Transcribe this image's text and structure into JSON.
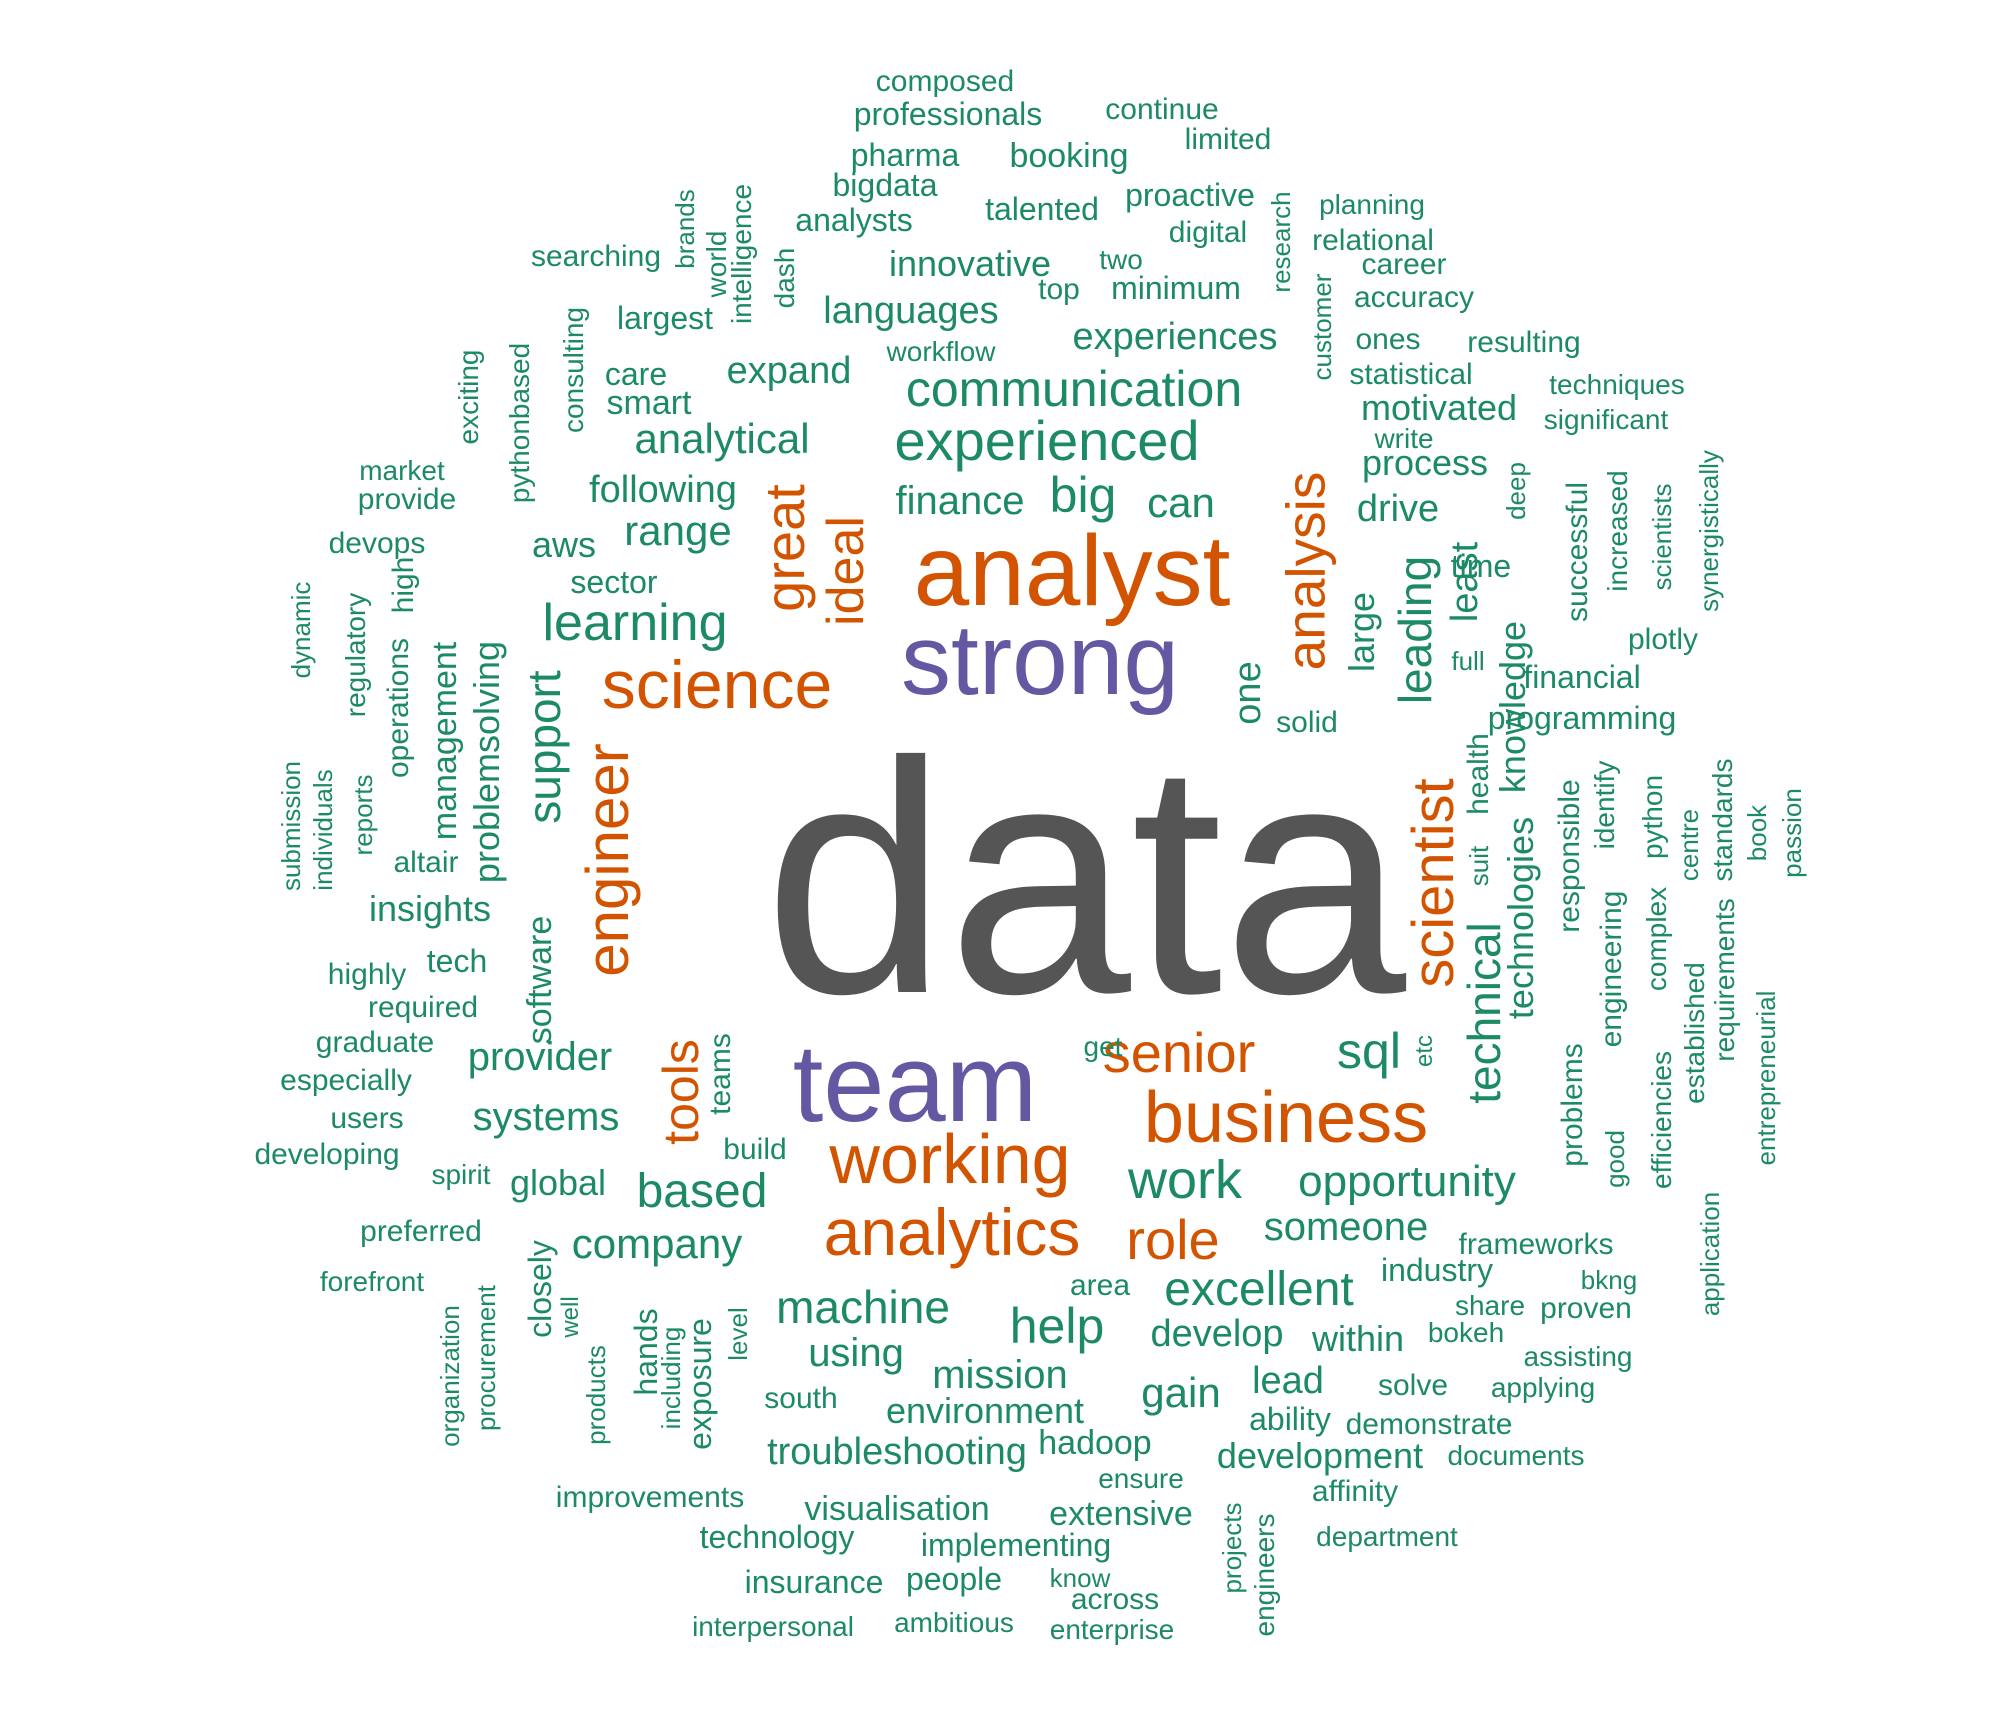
{
  "colors": {
    "top": "#555555",
    "large": "#6558a3",
    "mid": "#d35400",
    "small": "#1d8a66"
  },
  "words": [
    {
      "id": "data",
      "text": "data"
    },
    {
      "id": "analyst",
      "text": "analyst"
    },
    {
      "id": "strong",
      "text": "strong"
    },
    {
      "id": "team",
      "text": "team"
    },
    {
      "id": "science",
      "text": "science"
    },
    {
      "id": "business",
      "text": "business"
    },
    {
      "id": "working",
      "text": "working"
    },
    {
      "id": "analytics",
      "text": "analytics"
    },
    {
      "id": "engineer",
      "text": "engineer"
    },
    {
      "id": "scientist",
      "text": "scientist"
    },
    {
      "id": "analysis",
      "text": "analysis"
    },
    {
      "id": "senior",
      "text": "senior"
    },
    {
      "id": "great",
      "text": "great"
    },
    {
      "id": "ideal",
      "text": "ideal"
    },
    {
      "id": "tools",
      "text": "tools"
    },
    {
      "id": "role",
      "text": "role"
    },
    {
      "id": "experienced",
      "text": "experienced"
    },
    {
      "id": "communication",
      "text": "communication"
    },
    {
      "id": "learning",
      "text": "learning"
    },
    {
      "id": "work",
      "text": "work"
    },
    {
      "id": "machine",
      "text": "machine"
    },
    {
      "id": "excellent",
      "text": "excellent"
    },
    {
      "id": "opportunity",
      "text": "opportunity"
    },
    {
      "id": "technical",
      "text": "technical"
    },
    {
      "id": "leading",
      "text": "leading"
    },
    {
      "id": "big",
      "text": "big"
    },
    {
      "id": "help",
      "text": "help"
    },
    {
      "id": "based",
      "text": "based"
    },
    {
      "id": "sql",
      "text": "sql"
    },
    {
      "id": "support",
      "text": "support"
    },
    {
      "id": "knowledge",
      "text": "knowledge"
    },
    {
      "id": "technologies",
      "text": "technologies"
    },
    {
      "id": "analytical",
      "text": "analytical"
    },
    {
      "id": "languages",
      "text": "languages"
    },
    {
      "id": "experiences",
      "text": "experiences"
    },
    {
      "id": "company",
      "text": "company"
    },
    {
      "id": "someone",
      "text": "someone"
    },
    {
      "id": "provider",
      "text": "provider"
    },
    {
      "id": "systems",
      "text": "systems"
    },
    {
      "id": "range",
      "text": "range"
    },
    {
      "id": "following",
      "text": "following"
    },
    {
      "id": "finance",
      "text": "finance"
    },
    {
      "id": "can",
      "text": "can"
    },
    {
      "id": "expand",
      "text": "expand"
    },
    {
      "id": "innovative",
      "text": "innovative"
    },
    {
      "id": "motivated",
      "text": "motivated"
    },
    {
      "id": "process",
      "text": "process"
    },
    {
      "id": "drive",
      "text": "drive"
    },
    {
      "id": "large",
      "text": "large"
    },
    {
      "id": "least",
      "text": "least"
    },
    {
      "id": "one",
      "text": "one"
    },
    {
      "id": "problemsolving",
      "text": "problemsolving"
    },
    {
      "id": "software",
      "text": "software"
    },
    {
      "id": "management",
      "text": "management"
    },
    {
      "id": "insights",
      "text": "insights"
    },
    {
      "id": "mission",
      "text": "mission"
    },
    {
      "id": "environment",
      "text": "environment"
    },
    {
      "id": "troubleshooting",
      "text": "troubleshooting"
    },
    {
      "id": "develop",
      "text": "develop"
    },
    {
      "id": "within",
      "text": "within"
    },
    {
      "id": "using",
      "text": "using"
    },
    {
      "id": "gain",
      "text": "gain"
    },
    {
      "id": "lead",
      "text": "lead"
    },
    {
      "id": "development",
      "text": "development"
    },
    {
      "id": "hadoop",
      "text": "hadoop"
    },
    {
      "id": "industry",
      "text": "industry"
    },
    {
      "id": "global",
      "text": "global"
    },
    {
      "id": "visualisation",
      "text": "visualisation"
    },
    {
      "id": "extensive",
      "text": "extensive"
    },
    {
      "id": "programming",
      "text": "programming"
    },
    {
      "id": "financial",
      "text": "financial"
    },
    {
      "id": "aws",
      "text": "aws"
    },
    {
      "id": "sector",
      "text": "sector"
    },
    {
      "id": "time",
      "text": "time"
    },
    {
      "id": "teams",
      "text": "teams"
    },
    {
      "id": "exposure",
      "text": "exposure"
    },
    {
      "id": "hands",
      "text": "hands"
    },
    {
      "id": "closely",
      "text": "closely"
    },
    {
      "id": "engineering",
      "text": "engineering"
    },
    {
      "id": "responsible",
      "text": "responsible"
    },
    {
      "id": "problems",
      "text": "problems"
    },
    {
      "id": "complex",
      "text": "complex"
    },
    {
      "id": "python",
      "text": "python"
    },
    {
      "id": "successful",
      "text": "successful"
    },
    {
      "id": "health",
      "text": "health"
    },
    {
      "id": "technology",
      "text": "technology"
    },
    {
      "id": "insurance",
      "text": "insurance"
    },
    {
      "id": "people",
      "text": "people"
    },
    {
      "id": "implementing",
      "text": "implementing"
    },
    {
      "id": "ability",
      "text": "ability"
    },
    {
      "id": "demonstrate",
      "text": "demonstrate"
    },
    {
      "id": "south",
      "text": "south"
    },
    {
      "id": "build",
      "text": "build"
    },
    {
      "id": "area",
      "text": "area"
    },
    {
      "id": "across",
      "text": "across"
    },
    {
      "id": "tech",
      "text": "tech"
    },
    {
      "id": "required",
      "text": "required"
    },
    {
      "id": "altair",
      "text": "altair"
    },
    {
      "id": "minimum",
      "text": "minimum"
    },
    {
      "id": "workflow",
      "text": "workflow"
    },
    {
      "id": "digital",
      "text": "digital"
    },
    {
      "id": "relational",
      "text": "relational"
    },
    {
      "id": "career",
      "text": "career"
    },
    {
      "id": "accuracy",
      "text": "accuracy"
    },
    {
      "id": "ones",
      "text": "ones"
    },
    {
      "id": "resulting",
      "text": "resulting"
    },
    {
      "id": "statistical",
      "text": "statistical"
    },
    {
      "id": "plotly",
      "text": "plotly"
    },
    {
      "id": "solid",
      "text": "solid"
    },
    {
      "id": "full",
      "text": "full"
    },
    {
      "id": "etc",
      "text": "etc"
    },
    {
      "id": "get",
      "text": "get"
    },
    {
      "id": "suit",
      "text": "suit"
    },
    {
      "id": "deep",
      "text": "deep"
    },
    {
      "id": "identify",
      "text": "identify"
    },
    {
      "id": "standards",
      "text": "standards"
    },
    {
      "id": "centre",
      "text": "centre"
    },
    {
      "id": "requirements",
      "text": "requirements"
    },
    {
      "id": "established",
      "text": "established"
    },
    {
      "id": "efficiencies",
      "text": "efficiencies"
    },
    {
      "id": "good",
      "text": "good"
    },
    {
      "id": "book",
      "text": "book"
    },
    {
      "id": "passion",
      "text": "passion"
    },
    {
      "id": "entrepreneurial",
      "text": "entrepreneurial"
    },
    {
      "id": "application",
      "text": "application"
    },
    {
      "id": "increased",
      "text": "increased"
    },
    {
      "id": "scientists",
      "text": "scientists"
    },
    {
      "id": "synergistically",
      "text": "synergistically"
    },
    {
      "id": "techniques",
      "text": "techniques"
    },
    {
      "id": "significant",
      "text": "significant"
    },
    {
      "id": "write",
      "text": "write"
    },
    {
      "id": "customer",
      "text": "customer"
    },
    {
      "id": "research",
      "text": "research"
    },
    {
      "id": "planning",
      "text": "planning"
    },
    {
      "id": "proactive",
      "text": "proactive"
    },
    {
      "id": "talented",
      "text": "talented"
    },
    {
      "id": "booking",
      "text": "booking"
    },
    {
      "id": "two",
      "text": "two"
    },
    {
      "id": "top",
      "text": "top"
    },
    {
      "id": "dash",
      "text": "dash"
    },
    {
      "id": "analysts",
      "text": "analysts"
    },
    {
      "id": "bigdata",
      "text": "bigdata"
    },
    {
      "id": "pharma",
      "text": "pharma"
    },
    {
      "id": "professionals",
      "text": "professionals"
    },
    {
      "id": "composed",
      "text": "composed"
    },
    {
      "id": "continue",
      "text": "continue"
    },
    {
      "id": "limited",
      "text": "limited"
    },
    {
      "id": "intelligence",
      "text": "intelligence"
    },
    {
      "id": "world",
      "text": "world"
    },
    {
      "id": "brands",
      "text": "brands"
    },
    {
      "id": "searching",
      "text": "searching"
    },
    {
      "id": "largest",
      "text": "largest"
    },
    {
      "id": "consulting",
      "text": "consulting"
    },
    {
      "id": "pythonbased",
      "text": "pythonbased"
    },
    {
      "id": "exciting",
      "text": "exciting"
    },
    {
      "id": "care",
      "text": "care"
    },
    {
      "id": "smart",
      "text": "smart"
    },
    {
      "id": "market",
      "text": "market"
    },
    {
      "id": "provide",
      "text": "provide"
    },
    {
      "id": "devops",
      "text": "devops"
    },
    {
      "id": "high",
      "text": "high"
    },
    {
      "id": "operations",
      "text": "operations"
    },
    {
      "id": "regulatory",
      "text": "regulatory"
    },
    {
      "id": "reports",
      "text": "reports"
    },
    {
      "id": "dynamic",
      "text": "dynamic"
    },
    {
      "id": "individuals",
      "text": "individuals"
    },
    {
      "id": "submission",
      "text": "submission"
    },
    {
      "id": "highly",
      "text": "highly"
    },
    {
      "id": "graduate",
      "text": "graduate"
    },
    {
      "id": "especially",
      "text": "especially"
    },
    {
      "id": "users",
      "text": "users"
    },
    {
      "id": "developing",
      "text": "developing"
    },
    {
      "id": "spirit",
      "text": "spirit"
    },
    {
      "id": "preferred",
      "text": "preferred"
    },
    {
      "id": "forefront",
      "text": "forefront"
    },
    {
      "id": "organization",
      "text": "organization"
    },
    {
      "id": "procurement",
      "text": "procurement"
    },
    {
      "id": "well",
      "text": "well"
    },
    {
      "id": "products",
      "text": "products"
    },
    {
      "id": "including",
      "text": "including"
    },
    {
      "id": "level",
      "text": "level"
    },
    {
      "id": "improvements",
      "text": "improvements"
    },
    {
      "id": "interpersonal",
      "text": "interpersonal"
    },
    {
      "id": "ambitious",
      "text": "ambitious"
    },
    {
      "id": "know",
      "text": "know"
    },
    {
      "id": "enterprise",
      "text": "enterprise"
    },
    {
      "id": "ensure",
      "text": "ensure"
    },
    {
      "id": "projects",
      "text": "projects"
    },
    {
      "id": "engineers",
      "text": "engineers"
    },
    {
      "id": "affinity",
      "text": "affinity"
    },
    {
      "id": "department",
      "text": "department"
    },
    {
      "id": "documents",
      "text": "documents"
    },
    {
      "id": "solve",
      "text": "solve"
    },
    {
      "id": "applying",
      "text": "applying"
    },
    {
      "id": "assisting",
      "text": "assisting"
    },
    {
      "id": "bokeh",
      "text": "bokeh"
    },
    {
      "id": "share",
      "text": "share"
    },
    {
      "id": "proven",
      "text": "proven"
    },
    {
      "id": "bkng",
      "text": "bkng"
    },
    {
      "id": "frameworks",
      "text": "frameworks"
    }
  ]
}
